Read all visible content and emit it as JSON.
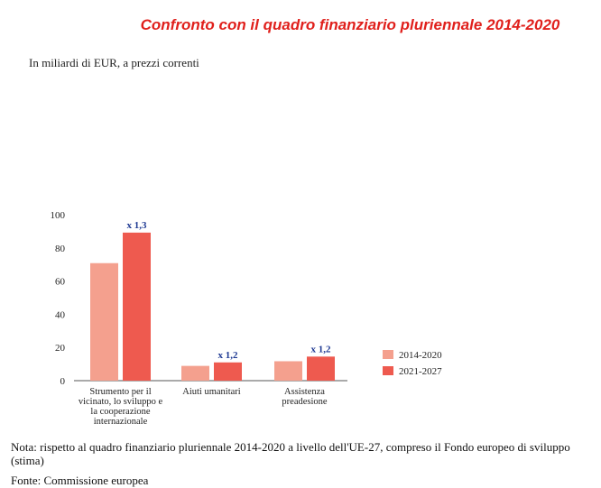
{
  "header": {
    "title": "Confronto con il quadro finanziario pluriennale 2014-2020",
    "subtitle": "In miliardi di EUR, a prezzi correnti"
  },
  "footer": {
    "note": "Nota: rispetto al quadro finanziario pluriennale 2014-2020 a livello dell'UE-27, compreso il Fondo europeo di sviluppo (stima)",
    "source": "Fonte: Commissione europea"
  },
  "colors": {
    "series_2014_2020": "#f4a08e",
    "series_2021_2027": "#ee5a4f",
    "multiplier_text": "#1f3a93",
    "title": "#e0201c"
  },
  "chart_data": {
    "type": "bar",
    "categories": [
      [
        "Strumento per il",
        "vicinato, lo sviluppo e",
        "la cooperazione",
        "internazionale"
      ],
      [
        "Aiuti umanitari"
      ],
      [
        "Assistenza",
        "preadesione"
      ]
    ],
    "series": [
      {
        "name": "2014-2020",
        "values": [
          70.8,
          8.9,
          11.7
        ]
      },
      {
        "name": "2021-2027",
        "values": [
          89.2,
          11.0,
          14.5
        ]
      }
    ],
    "annotations": [
      "x 1,3",
      "x 1,2",
      "x 1,2"
    ],
    "y_ticks": [
      0,
      20,
      40,
      60,
      80,
      100
    ],
    "ylim": [
      0,
      100
    ],
    "grid": false,
    "legend": "right"
  }
}
